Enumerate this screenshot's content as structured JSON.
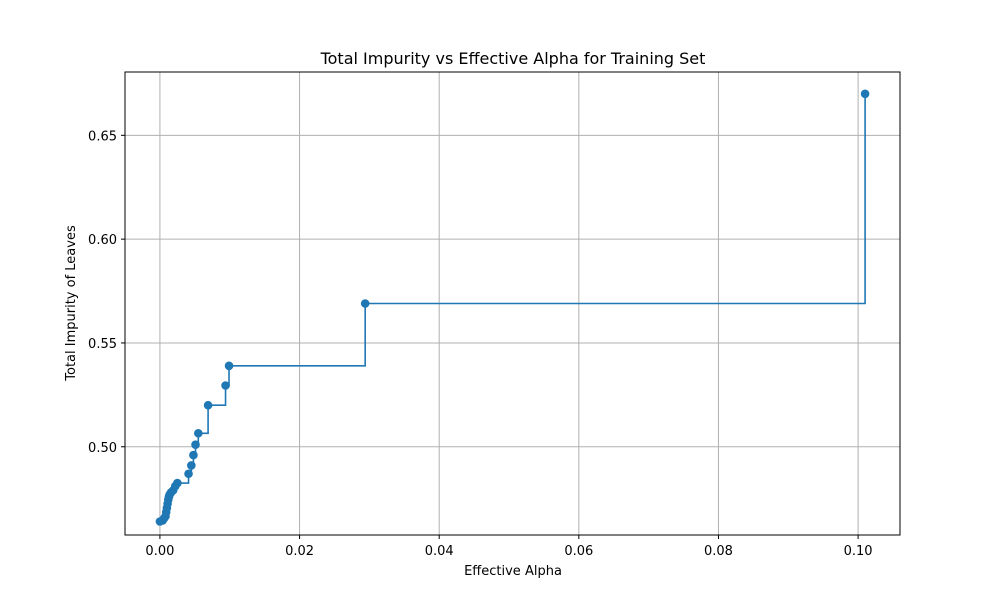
{
  "chart_data": {
    "type": "line",
    "title": "Total Impurity vs Effective Alpha for Training Set",
    "xlabel": "Effective Alpha",
    "ylabel": "Total Impurity of Leaves",
    "xlim": [
      -0.005,
      0.106
    ],
    "ylim": [
      0.4575,
      0.6805
    ],
    "xticks": [
      0.0,
      0.02,
      0.04,
      0.06,
      0.08,
      0.1
    ],
    "xtick_labels": [
      "0.00",
      "0.02",
      "0.04",
      "0.06",
      "0.08",
      "0.10"
    ],
    "yticks": [
      0.5,
      0.55,
      0.6,
      0.65
    ],
    "ytick_labels": [
      "0.50",
      "0.55",
      "0.60",
      "0.65"
    ],
    "grid": true,
    "drawstyle": "steps-post",
    "marker": "circle",
    "series": [
      {
        "color": "#1f77b4",
        "x": [
          0.0,
          0.0004,
          0.0006,
          0.0008,
          0.0009,
          0.001,
          0.0011,
          0.0012,
          0.0013,
          0.0014,
          0.0016,
          0.0019,
          0.0022,
          0.0025,
          0.0041,
          0.0045,
          0.0048,
          0.0051,
          0.0055,
          0.0069,
          0.0094,
          0.0099,
          0.0294,
          0.101
        ],
        "y": [
          0.464,
          0.4645,
          0.4655,
          0.4665,
          0.4685,
          0.4705,
          0.4725,
          0.4745,
          0.476,
          0.477,
          0.478,
          0.479,
          0.481,
          0.4825,
          0.487,
          0.491,
          0.496,
          0.501,
          0.5065,
          0.52,
          0.5295,
          0.539,
          0.569,
          0.67
        ]
      }
    ]
  }
}
